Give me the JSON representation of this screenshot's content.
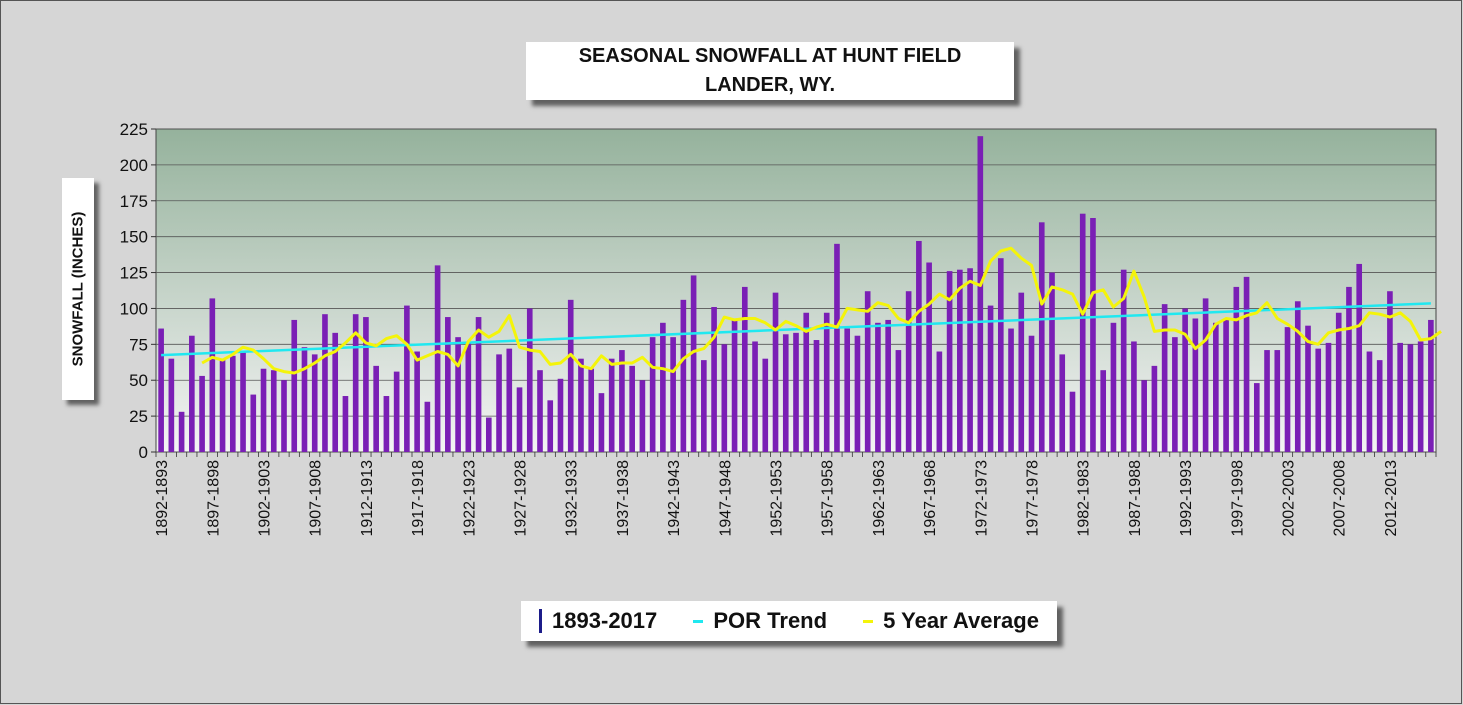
{
  "title_line1": "SEASONAL SNOWFALL AT HUNT FIELD",
  "title_line2": "LANDER, WY.",
  "colors": {
    "bar": "#7a1fb5",
    "trend": "#20e8f0",
    "avg": "#f4f40a",
    "plot_top": "#95b29c",
    "plot_bottom": "#f4f4f4",
    "legend_bar": "#1c1c8a"
  },
  "chart_data": {
    "type": "bar",
    "ylabel": "SNOWFALL (INCHES)",
    "xlabel": "",
    "ylim": [
      0,
      225
    ],
    "yticks": [
      0,
      25,
      50,
      75,
      100,
      125,
      150,
      175,
      200,
      225
    ],
    "grid": true,
    "legend_position": "bottom",
    "start_year": 1892,
    "tick_labels": [
      "1892-1893",
      "1897-1898",
      "1902-1903",
      "1907-1908",
      "1912-1913",
      "1917-1918",
      "1922-1923",
      "1927-1928",
      "1932-1933",
      "1937-1938",
      "1942-1943",
      "1947-1948",
      "1952-1953",
      "1957-1958",
      "1962-1963",
      "1967-1968",
      "1972-1973",
      "1977-1978",
      "1982-1983",
      "1987-1988",
      "1992-1993",
      "1997-1998",
      "2002-2003",
      "2007-2008",
      "2012-2013"
    ],
    "series": [
      {
        "name": "1893-2017",
        "kind": "bar",
        "values": [
          86,
          65,
          28,
          81,
          53,
          107,
          65,
          67,
          70,
          40,
          58,
          57,
          50,
          92,
          73,
          68,
          96,
          83,
          39,
          96,
          94,
          60,
          39,
          56,
          102,
          70,
          35,
          130,
          94,
          80,
          76,
          94,
          24,
          68,
          72,
          45,
          100,
          57,
          36,
          51,
          106,
          65,
          58,
          41,
          65,
          71,
          60,
          50,
          80,
          90,
          80,
          106,
          123,
          64,
          101,
          75,
          93,
          115,
          77,
          65,
          111,
          82,
          83,
          97,
          78,
          97,
          145,
          86,
          81,
          112,
          90,
          92,
          71,
          112,
          147,
          132,
          70,
          126,
          127,
          128,
          220,
          102,
          135,
          86,
          111,
          81,
          160,
          125,
          68,
          42,
          166,
          163,
          57,
          90,
          127,
          77,
          50,
          60,
          103,
          80,
          100,
          93,
          107,
          90,
          93,
          115,
          122,
          48,
          71,
          71,
          87,
          105,
          88,
          72,
          76,
          97,
          115,
          131,
          70,
          64,
          112,
          76,
          75,
          77,
          92
        ]
      },
      {
        "name": "POR Trend",
        "kind": "line",
        "start": 67.5,
        "end": 103.5
      },
      {
        "name": "5 Year Average",
        "kind": "line",
        "values": [
          null,
          null,
          null,
          null,
          62,
          66,
          64,
          68,
          73,
          71,
          65,
          58,
          56,
          55,
          58,
          62,
          67,
          70,
          76,
          83,
          76,
          74,
          79,
          81,
          75,
          64,
          67,
          70,
          68,
          60,
          77,
          85,
          80,
          84,
          95,
          73,
          71,
          70,
          61,
          62,
          68,
          60,
          58,
          67,
          61,
          62,
          62,
          66,
          59,
          58,
          56,
          65,
          70,
          72,
          80,
          94,
          92,
          93,
          93,
          90,
          85,
          91,
          88,
          84,
          87,
          89,
          87,
          100,
          99,
          98,
          104,
          102,
          93,
          90,
          98,
          103,
          110,
          106,
          114,
          119,
          116,
          133,
          140,
          142,
          135,
          130,
          103,
          115,
          113,
          110,
          96,
          111,
          113,
          101,
          107,
          126,
          108,
          84,
          85,
          85,
          82,
          72,
          78,
          89,
          93,
          92,
          95,
          97,
          104,
          93,
          89,
          84,
          77,
          75,
          83,
          85,
          86,
          88,
          97,
          96,
          94,
          97,
          91,
          78,
          79,
          84
        ]
      }
    ]
  }
}
